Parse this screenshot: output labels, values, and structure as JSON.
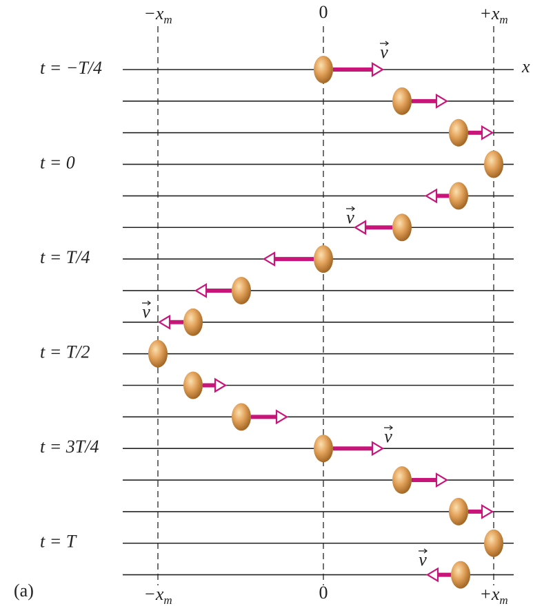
{
  "axis_top": [
    {
      "main": "−x",
      "sub": "m"
    },
    {
      "main": "0"
    },
    {
      "main": "+x",
      "sub": "m"
    }
  ],
  "axis_bottom": [
    {
      "main": "−x",
      "sub": "m"
    },
    {
      "main": "0"
    },
    {
      "main": "+x",
      "sub": "m"
    }
  ],
  "axis_name": "x",
  "time_labels": [
    "t = −T/4",
    "t = 0",
    "t = T/4",
    "t = T/2",
    "t = 3T/4",
    "t = T"
  ],
  "velocity_labels": [
    "v",
    "v",
    "v",
    "v",
    "v"
  ],
  "panel_label": "(a)"
}
